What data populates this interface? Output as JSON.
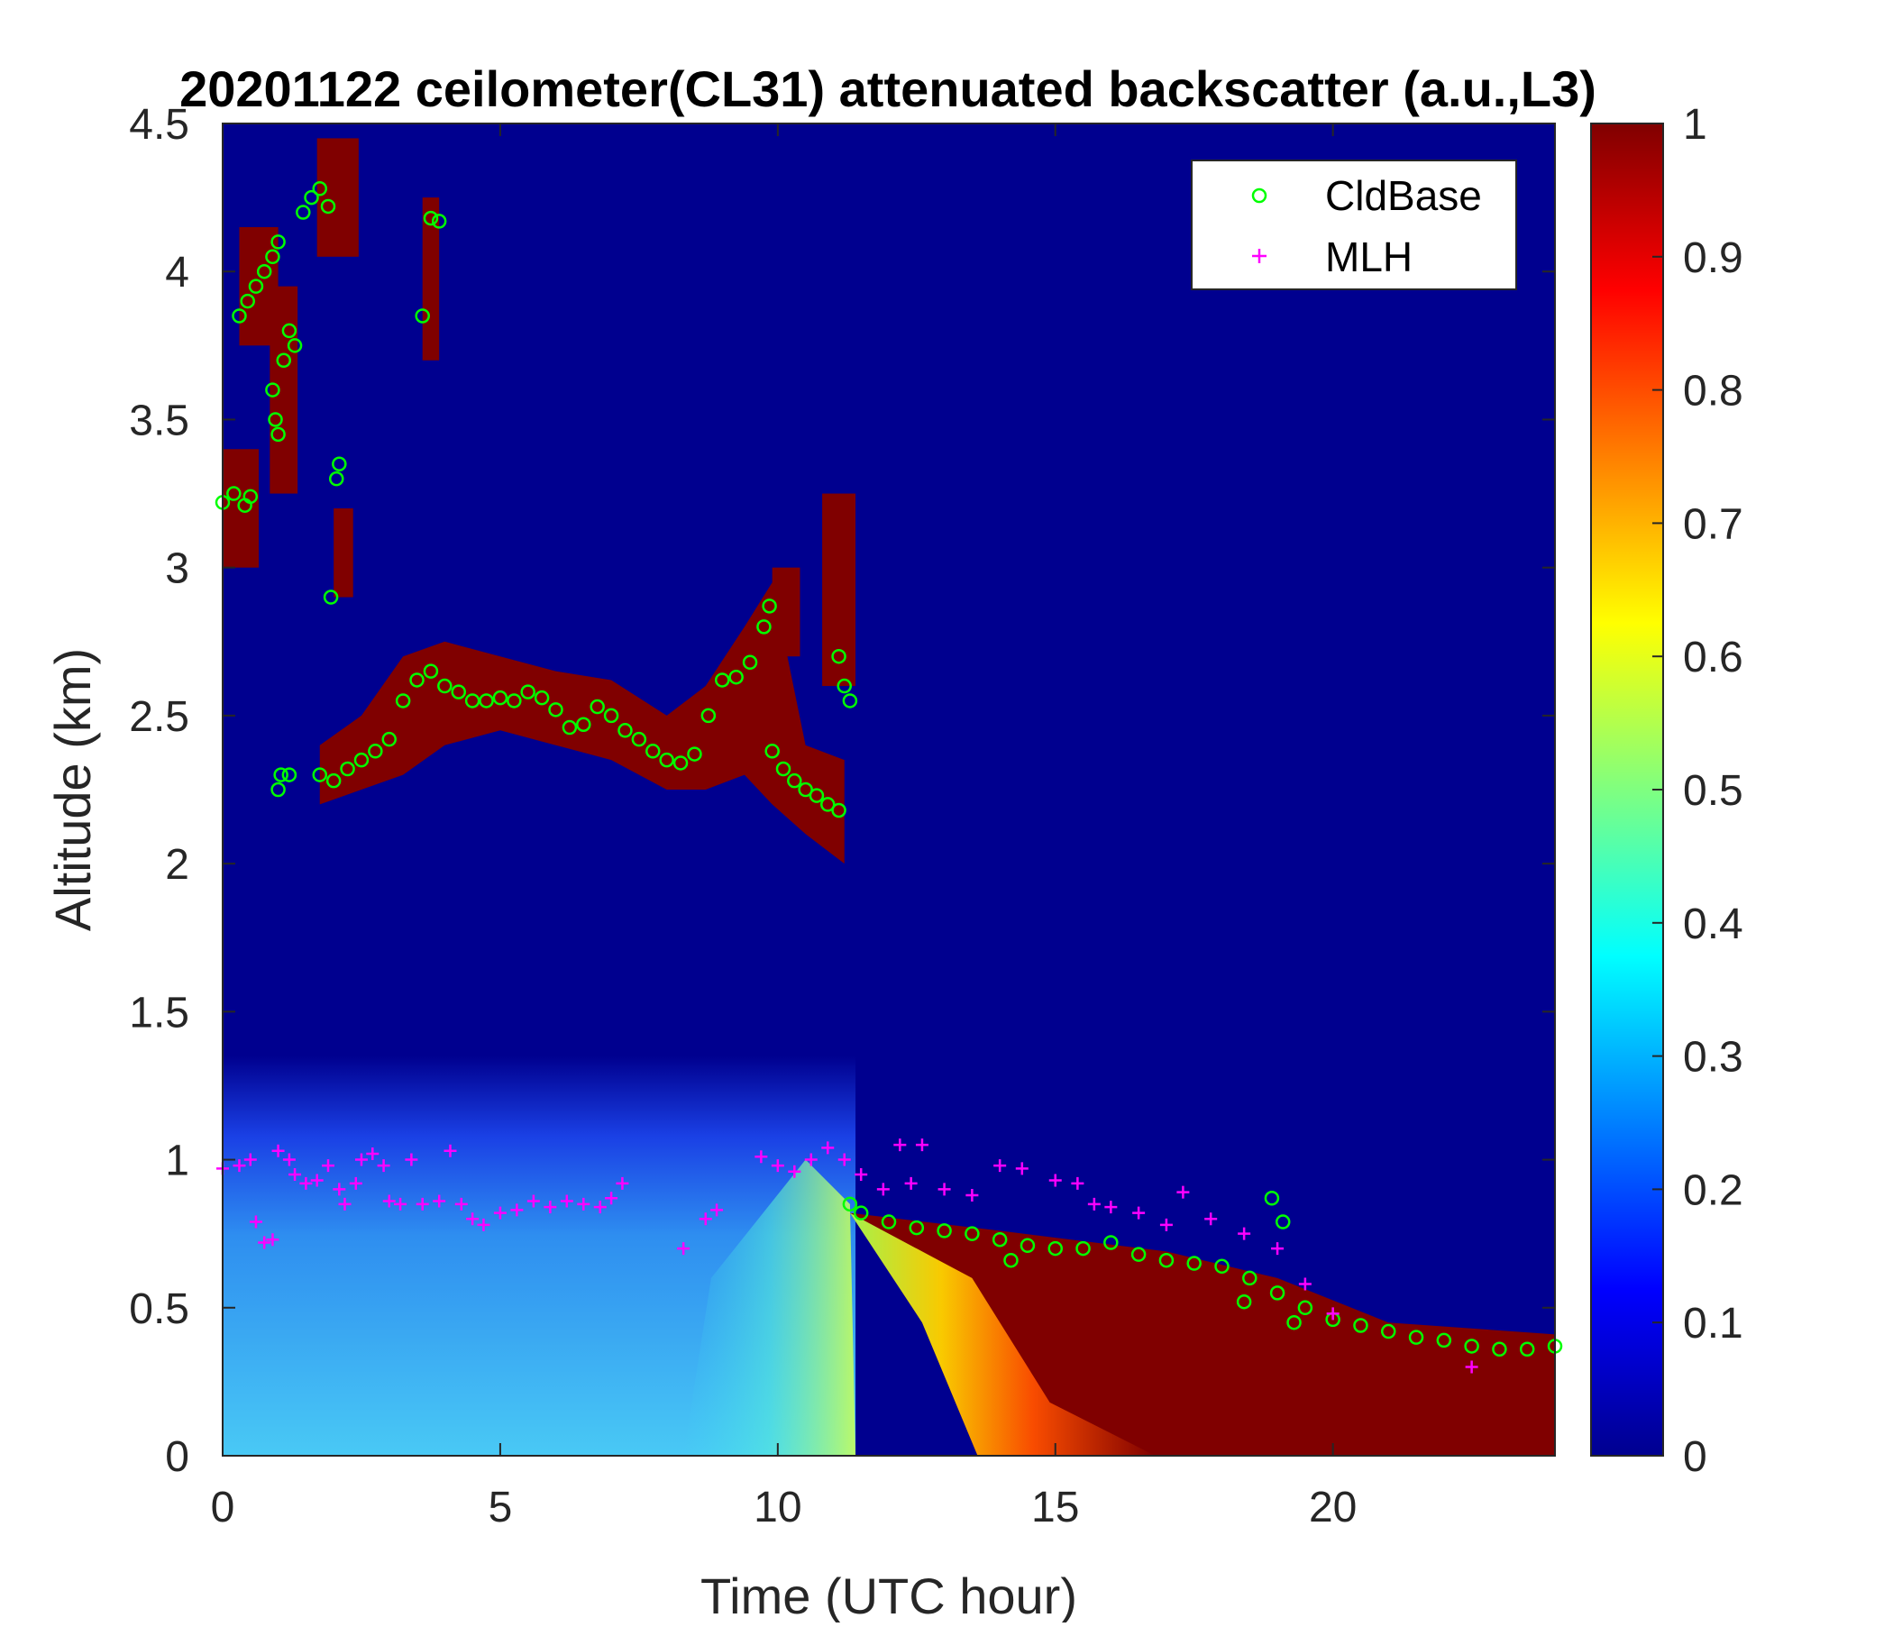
{
  "chart_data": {
    "type": "heatmap",
    "title": "20201122 ceilometer(CL31) attenuated backscatter (a.u.,L3)",
    "xlabel": "Time (UTC hour)",
    "ylabel": "Altitude (km)",
    "xlim": [
      0,
      24
    ],
    "ylim": [
      0,
      4.5
    ],
    "xticks": [
      0,
      5,
      10,
      15,
      20
    ],
    "yticks": [
      0,
      0.5,
      1,
      1.5,
      2,
      2.5,
      3,
      3.5,
      4,
      4.5
    ],
    "colorbar": {
      "colormap": "jet",
      "range": [
        0,
        1
      ],
      "ticks": [
        0,
        0.1,
        0.2,
        0.3,
        0.4,
        0.5,
        0.6,
        0.7,
        0.8,
        0.9,
        1
      ]
    },
    "legend_position": "top-right",
    "series": [
      {
        "name": "CldBase",
        "marker": "circle",
        "color": "#00ff00",
        "points": [
          [
            0.0,
            3.22
          ],
          [
            0.2,
            3.25
          ],
          [
            0.4,
            3.21
          ],
          [
            0.5,
            3.24
          ],
          [
            0.3,
            3.85
          ],
          [
            0.45,
            3.9
          ],
          [
            0.6,
            3.95
          ],
          [
            0.75,
            4.0
          ],
          [
            0.9,
            4.05
          ],
          [
            1.0,
            4.1
          ],
          [
            0.9,
            3.6
          ],
          [
            0.95,
            3.5
          ],
          [
            1.0,
            3.45
          ],
          [
            1.1,
            3.7
          ],
          [
            1.2,
            3.8
          ],
          [
            1.3,
            3.75
          ],
          [
            1.45,
            4.2
          ],
          [
            1.6,
            4.25
          ],
          [
            1.75,
            4.28
          ],
          [
            1.9,
            4.22
          ],
          [
            2.1,
            3.35
          ],
          [
            2.05,
            3.3
          ],
          [
            1.95,
            2.9
          ],
          [
            3.6,
            3.85
          ],
          [
            3.75,
            4.18
          ],
          [
            3.9,
            4.17
          ],
          [
            1.0,
            2.25
          ],
          [
            1.05,
            2.3
          ],
          [
            1.2,
            2.3
          ],
          [
            1.75,
            2.3
          ],
          [
            2.0,
            2.28
          ],
          [
            2.25,
            2.32
          ],
          [
            2.5,
            2.35
          ],
          [
            2.75,
            2.38
          ],
          [
            3.0,
            2.42
          ],
          [
            3.25,
            2.55
          ],
          [
            3.5,
            2.62
          ],
          [
            3.75,
            2.65
          ],
          [
            4.0,
            2.6
          ],
          [
            4.25,
            2.58
          ],
          [
            4.5,
            2.55
          ],
          [
            4.75,
            2.55
          ],
          [
            5.0,
            2.56
          ],
          [
            5.25,
            2.55
          ],
          [
            5.5,
            2.58
          ],
          [
            5.75,
            2.56
          ],
          [
            6.0,
            2.52
          ],
          [
            6.25,
            2.46
          ],
          [
            6.5,
            2.47
          ],
          [
            6.75,
            2.53
          ],
          [
            7.0,
            2.5
          ],
          [
            7.25,
            2.45
          ],
          [
            7.5,
            2.42
          ],
          [
            7.75,
            2.38
          ],
          [
            8.0,
            2.35
          ],
          [
            8.25,
            2.34
          ],
          [
            8.5,
            2.37
          ],
          [
            8.75,
            2.5
          ],
          [
            9.0,
            2.62
          ],
          [
            9.25,
            2.63
          ],
          [
            9.5,
            2.68
          ],
          [
            9.75,
            2.8
          ],
          [
            9.85,
            2.87
          ],
          [
            9.9,
            2.38
          ],
          [
            10.1,
            2.32
          ],
          [
            10.3,
            2.28
          ],
          [
            10.5,
            2.25
          ],
          [
            10.7,
            2.23
          ],
          [
            10.9,
            2.2
          ],
          [
            11.1,
            2.18
          ],
          [
            11.1,
            2.7
          ],
          [
            11.2,
            2.6
          ],
          [
            11.3,
            2.55
          ],
          [
            11.3,
            0.85
          ],
          [
            11.5,
            0.82
          ],
          [
            12.0,
            0.79
          ],
          [
            12.5,
            0.77
          ],
          [
            13.0,
            0.76
          ],
          [
            13.5,
            0.75
          ],
          [
            14.0,
            0.73
          ],
          [
            14.5,
            0.71
          ],
          [
            15.0,
            0.7
          ],
          [
            15.5,
            0.7
          ],
          [
            16.0,
            0.72
          ],
          [
            16.5,
            0.68
          ],
          [
            17.0,
            0.66
          ],
          [
            17.5,
            0.65
          ],
          [
            18.0,
            0.64
          ],
          [
            18.5,
            0.6
          ],
          [
            19.0,
            0.55
          ],
          [
            19.5,
            0.5
          ],
          [
            20.0,
            0.46
          ],
          [
            20.5,
            0.44
          ],
          [
            21.0,
            0.42
          ],
          [
            21.5,
            0.4
          ],
          [
            22.0,
            0.39
          ],
          [
            22.5,
            0.37
          ],
          [
            23.0,
            0.36
          ],
          [
            23.5,
            0.36
          ],
          [
            24.0,
            0.37
          ],
          [
            14.2,
            0.66
          ],
          [
            18.4,
            0.52
          ],
          [
            18.9,
            0.87
          ],
          [
            19.1,
            0.79
          ],
          [
            19.3,
            0.45
          ]
        ]
      },
      {
        "name": "MLH",
        "marker": "plus",
        "color": "#ff00ff",
        "points": [
          [
            0.0,
            0.97
          ],
          [
            0.3,
            0.98
          ],
          [
            0.5,
            1.0
          ],
          [
            0.6,
            0.79
          ],
          [
            0.75,
            0.72
          ],
          [
            0.9,
            0.73
          ],
          [
            1.0,
            1.03
          ],
          [
            1.2,
            1.0
          ],
          [
            1.3,
            0.95
          ],
          [
            1.5,
            0.92
          ],
          [
            1.7,
            0.93
          ],
          [
            1.9,
            0.98
          ],
          [
            2.1,
            0.9
          ],
          [
            2.2,
            0.85
          ],
          [
            2.4,
            0.92
          ],
          [
            2.5,
            1.0
          ],
          [
            2.7,
            1.02
          ],
          [
            2.9,
            0.98
          ],
          [
            3.0,
            0.86
          ],
          [
            3.2,
            0.85
          ],
          [
            3.4,
            1.0
          ],
          [
            3.6,
            0.85
          ],
          [
            3.9,
            0.86
          ],
          [
            4.1,
            1.03
          ],
          [
            4.3,
            0.85
          ],
          [
            4.5,
            0.8
          ],
          [
            4.7,
            0.78
          ],
          [
            5.0,
            0.82
          ],
          [
            5.3,
            0.83
          ],
          [
            5.6,
            0.86
          ],
          [
            5.9,
            0.84
          ],
          [
            6.2,
            0.86
          ],
          [
            6.5,
            0.85
          ],
          [
            6.8,
            0.84
          ],
          [
            7.0,
            0.87
          ],
          [
            7.2,
            0.92
          ],
          [
            8.3,
            0.7
          ],
          [
            8.7,
            0.8
          ],
          [
            8.9,
            0.83
          ],
          [
            9.7,
            1.01
          ],
          [
            10.0,
            0.98
          ],
          [
            10.3,
            0.96
          ],
          [
            10.6,
            1.0
          ],
          [
            10.9,
            1.04
          ],
          [
            11.2,
            1.0
          ],
          [
            11.5,
            0.95
          ],
          [
            11.9,
            0.9
          ],
          [
            12.2,
            1.05
          ],
          [
            12.6,
            1.05
          ],
          [
            12.4,
            0.92
          ],
          [
            13.0,
            0.9
          ],
          [
            13.5,
            0.88
          ],
          [
            14.0,
            0.98
          ],
          [
            14.4,
            0.97
          ],
          [
            15.0,
            0.93
          ],
          [
            15.4,
            0.92
          ],
          [
            15.7,
            0.85
          ],
          [
            16.0,
            0.84
          ],
          [
            16.5,
            0.82
          ],
          [
            17.0,
            0.78
          ],
          [
            17.3,
            0.89
          ],
          [
            17.8,
            0.8
          ],
          [
            18.4,
            0.75
          ],
          [
            19.0,
            0.7
          ],
          [
            19.5,
            0.58
          ],
          [
            20.0,
            0.48
          ],
          [
            22.5,
            0.3
          ]
        ]
      }
    ]
  }
}
